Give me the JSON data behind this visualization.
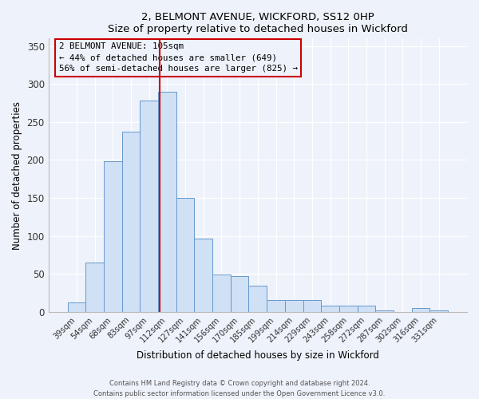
{
  "title": "2, BELMONT AVENUE, WICKFORD, SS12 0HP",
  "subtitle": "Size of property relative to detached houses in Wickford",
  "xlabel": "Distribution of detached houses by size in Wickford",
  "ylabel": "Number of detached properties",
  "bar_color": "#d0e0f5",
  "bar_edge_color": "#6699cc",
  "categories": [
    "39sqm",
    "54sqm",
    "68sqm",
    "83sqm",
    "97sqm",
    "112sqm",
    "127sqm",
    "141sqm",
    "156sqm",
    "170sqm",
    "185sqm",
    "199sqm",
    "214sqm",
    "229sqm",
    "243sqm",
    "258sqm",
    "272sqm",
    "287sqm",
    "302sqm",
    "316sqm",
    "331sqm"
  ],
  "values": [
    12,
    65,
    198,
    237,
    278,
    290,
    150,
    96,
    49,
    47,
    34,
    15,
    15,
    15,
    8,
    8,
    8,
    2,
    0,
    5,
    2
  ],
  "vline_color": "#cc0000",
  "vline_pos": 4.6,
  "annotation_title": "2 BELMONT AVENUE: 105sqm",
  "annotation_line1": "← 44% of detached houses are smaller (649)",
  "annotation_line2": "56% of semi-detached houses are larger (825) →",
  "annotation_box_color": "#cc0000",
  "ylim": [
    0,
    360
  ],
  "yticks": [
    0,
    50,
    100,
    150,
    200,
    250,
    300,
    350
  ],
  "footer1": "Contains HM Land Registry data © Crown copyright and database right 2024.",
  "footer2": "Contains public sector information licensed under the Open Government Licence v3.0.",
  "bg_color": "#eef2fa"
}
